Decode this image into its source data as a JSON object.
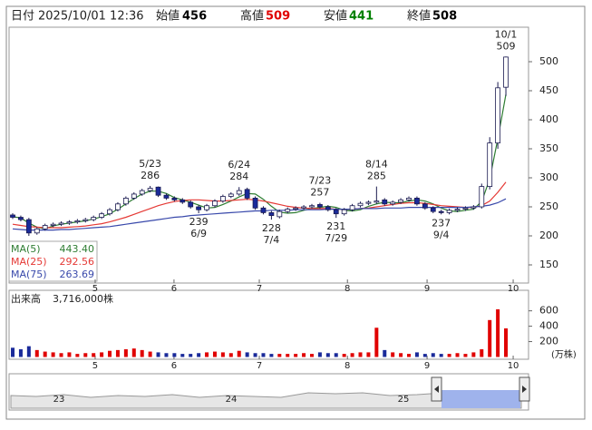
{
  "header": {
    "date_label": "日付",
    "date": "2025/10/01 12:36",
    "fields": [
      {
        "label": "始値",
        "value": 456,
        "color": "#000000"
      },
      {
        "label": "高値",
        "value": 509,
        "color": "#e00000"
      },
      {
        "label": "安値",
        "value": 441,
        "color": "#008000"
      },
      {
        "label": "終値",
        "value": 508,
        "color": "#000000"
      }
    ]
  },
  "chart_data": {
    "type": "candlestick",
    "x": [
      0,
      2,
      4,
      6,
      8,
      10,
      12,
      14,
      16,
      18,
      20,
      22,
      24,
      26,
      28,
      30,
      32,
      34,
      36,
      38,
      40,
      42,
      44,
      46,
      48,
      50,
      52,
      54,
      56,
      58,
      60,
      62,
      64,
      66,
      68,
      70,
      72,
      74,
      76,
      78,
      80,
      82,
      84,
      86,
      88,
      90,
      92,
      94,
      96,
      98,
      100,
      102,
      104,
      106,
      108,
      110,
      112,
      114,
      116,
      118,
      120,
      122
    ],
    "open": [
      236,
      232,
      228,
      205,
      212,
      218,
      220,
      222,
      224,
      226,
      228,
      232,
      238,
      245,
      255,
      265,
      272,
      278,
      284,
      270,
      265,
      262,
      258,
      250,
      245,
      252,
      260,
      268,
      272,
      280,
      265,
      248,
      240,
      233,
      242,
      246,
      248,
      250,
      254,
      250,
      245,
      238,
      245,
      252,
      256,
      258,
      262,
      255,
      258,
      262,
      265,
      255,
      248,
      242,
      240,
      244,
      246,
      248,
      250,
      285,
      360,
      456
    ],
    "high": [
      239,
      235,
      231,
      215,
      221,
      223,
      225,
      227,
      229,
      231,
      235,
      241,
      248,
      258,
      268,
      275,
      281,
      286,
      285,
      273,
      268,
      265,
      261,
      253,
      255,
      263,
      271,
      275,
      284,
      283,
      268,
      251,
      243,
      245,
      249,
      251,
      253,
      255,
      257,
      253,
      248,
      248,
      255,
      259,
      261,
      285,
      265,
      261,
      265,
      268,
      268,
      258,
      251,
      245,
      247,
      249,
      251,
      253,
      290,
      370,
      465,
      509
    ],
    "low": [
      229,
      225,
      200,
      202,
      209,
      215,
      217,
      219,
      221,
      223,
      225,
      229,
      235,
      242,
      252,
      262,
      269,
      275,
      267,
      262,
      259,
      255,
      247,
      239,
      242,
      249,
      257,
      265,
      269,
      262,
      245,
      237,
      228,
      230,
      239,
      243,
      245,
      247,
      247,
      242,
      231,
      235,
      242,
      249,
      253,
      255,
      252,
      252,
      255,
      259,
      252,
      245,
      239,
      237,
      237,
      241,
      243,
      245,
      247,
      280,
      350,
      441
    ],
    "close": [
      232,
      228,
      205,
      212,
      218,
      220,
      222,
      224,
      226,
      228,
      232,
      238,
      245,
      255,
      265,
      272,
      278,
      282,
      270,
      265,
      262,
      258,
      250,
      245,
      252,
      260,
      268,
      272,
      278,
      265,
      248,
      240,
      235,
      242,
      246,
      248,
      250,
      252,
      250,
      245,
      238,
      245,
      252,
      256,
      258,
      260,
      255,
      258,
      262,
      265,
      255,
      248,
      242,
      240,
      244,
      246,
      248,
      250,
      285,
      360,
      455,
      508
    ],
    "up_color": "#ffffff",
    "down_color": "#1a2a9a",
    "outline_color": "#1a1a50",
    "ylim": [
      118.75,
      559.4
    ],
    "yticks": [
      150,
      200,
      250,
      300,
      350,
      400,
      450,
      500
    ],
    "xlim": [
      -0.9,
      127.6
    ],
    "xticks": [
      {
        "value": 20.4,
        "label": "5"
      },
      {
        "value": 39.9,
        "label": "6"
      },
      {
        "value": 61.0,
        "label": "7"
      },
      {
        "value": 82.8,
        "label": "8"
      },
      {
        "value": 102.5,
        "label": "9"
      },
      {
        "value": 123.8,
        "label": "10"
      }
    ],
    "series": [
      {
        "name": "MA(5)",
        "color": "#2e7d32",
        "latest": "443.40",
        "values": [
          233,
          231,
          222,
          215,
          212,
          217,
          220,
          222,
          224,
          226,
          229,
          233,
          238,
          246,
          255,
          264,
          272,
          277,
          277,
          273,
          266,
          262,
          258,
          253,
          248,
          249,
          254,
          260,
          267,
          273,
          272,
          263,
          251,
          241,
          239,
          240,
          244,
          247,
          249,
          251,
          249,
          244,
          243,
          245,
          251,
          255,
          258,
          257,
          257,
          260,
          262,
          260,
          255,
          248,
          243,
          242,
          244,
          246,
          259,
          298,
          367,
          443.4
        ]
      },
      {
        "name": "MA(25)",
        "color": "#e53935",
        "latest": "292.56",
        "values": [
          220,
          218,
          216,
          215,
          214,
          214,
          214,
          215,
          216,
          217,
          219,
          221,
          224,
          228,
          232,
          237,
          242,
          247,
          252,
          256,
          259,
          261,
          262,
          262,
          261,
          260,
          260,
          261,
          262,
          263,
          262,
          260,
          257,
          254,
          251,
          249,
          248,
          247,
          247,
          247,
          246,
          246,
          246,
          247,
          248,
          250,
          252,
          254,
          256,
          257,
          257,
          256,
          254,
          252,
          251,
          250,
          249,
          249,
          252,
          260,
          275,
          292.56
        ]
      },
      {
        "name": "MA(75)",
        "color": "#3949ab",
        "latest": "263.69",
        "values": [
          212,
          211,
          210,
          210,
          210,
          210,
          211,
          211,
          212,
          213,
          214,
          215,
          216,
          218,
          220,
          222,
          224,
          226,
          228,
          230,
          232,
          233,
          235,
          236,
          237,
          238,
          239,
          240,
          241,
          242,
          243,
          243,
          244,
          244,
          244,
          245,
          245,
          245,
          245,
          246,
          246,
          246,
          246,
          247,
          247,
          247,
          248,
          248,
          248,
          249,
          249,
          249,
          249,
          249,
          249,
          249,
          249,
          250,
          251,
          253,
          257,
          263.69
        ]
      }
    ],
    "annotations": [
      {
        "x": 34,
        "date": "5/23",
        "value": 286,
        "side": "high"
      },
      {
        "x": 46,
        "date": "6/9",
        "value": 239,
        "side": "low"
      },
      {
        "x": 56,
        "date": "6/24",
        "value": 284,
        "side": "high"
      },
      {
        "x": 64,
        "date": "7/4",
        "value": 228,
        "side": "low"
      },
      {
        "x": 76,
        "date": "7/23",
        "value": 257,
        "side": "high"
      },
      {
        "x": 80,
        "date": "7/29",
        "value": 231,
        "side": "low"
      },
      {
        "x": 90,
        "date": "8/14",
        "value": 285,
        "side": "high"
      },
      {
        "x": 106,
        "date": "9/4",
        "value": 237,
        "side": "low"
      },
      {
        "x": 122,
        "date": "10/1",
        "value": 509,
        "side": "high"
      }
    ],
    "volume": {
      "title": "出来高",
      "total": "3,716,000株",
      "unit": "(万株)",
      "up_color": "#e00000",
      "down_color": "#1a2a9a",
      "values": [
        120,
        100,
        140,
        90,
        70,
        60,
        50,
        60,
        40,
        50,
        50,
        60,
        80,
        90,
        100,
        110,
        90,
        70,
        60,
        50,
        50,
        40,
        40,
        50,
        60,
        70,
        60,
        50,
        80,
        60,
        50,
        50,
        40,
        40,
        40,
        40,
        50,
        40,
        60,
        50,
        50,
        40,
        50,
        60,
        60,
        380,
        90,
        60,
        50,
        40,
        60,
        40,
        50,
        40,
        40,
        50,
        40,
        60,
        100,
        480,
        620,
        371.6
      ],
      "ylim": [
        0,
        867
      ],
      "yticks": [
        200,
        400,
        600
      ]
    }
  },
  "navigator": {
    "labels": [
      "23",
      "24",
      "25"
    ]
  }
}
